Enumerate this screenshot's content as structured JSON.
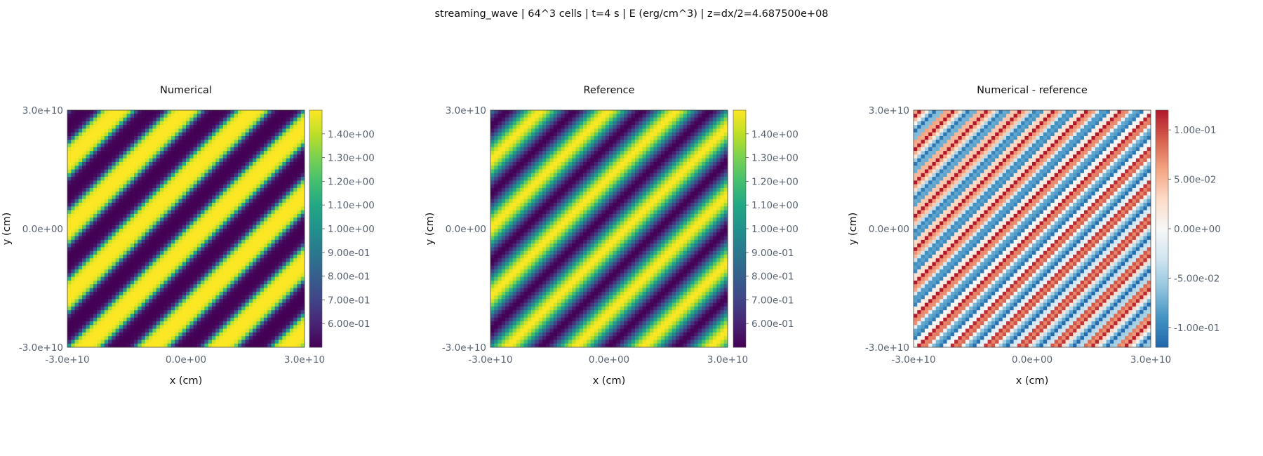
{
  "title": "streaming_wave | 64^3 cells | t=4 s | E (erg/cm^3) | z=dx/2=4.687500e+08",
  "chart_data": [
    {
      "type": "heatmap",
      "title": "Numerical",
      "xlabel": "x (cm)",
      "ylabel": "y (cm)",
      "xlim": [
        -30000000000.0,
        30000000000.0
      ],
      "ylim": [
        -30000000000.0,
        30000000000.0
      ],
      "x_ticks": [
        "-3.0e+10",
        "0.0e+00",
        "3.0e+10"
      ],
      "y_ticks": [
        "-3.0e+10",
        "0.0e+00",
        "3.0e+10"
      ],
      "grid": [
        64,
        64
      ],
      "field": "1 + 0.5*sin(k*(x - y)), 3.5 wavelengths across, sharpened stripes (diagonal from lower-left to upper-right)",
      "colormap": "viridis",
      "colorbar": {
        "range": [
          0.5,
          1.5
        ],
        "ticks": [
          {
            "value": 1.4,
            "label": "1.40e+00"
          },
          {
            "value": 1.3,
            "label": "1.30e+00"
          },
          {
            "value": 1.2,
            "label": "1.20e+00"
          },
          {
            "value": 1.1,
            "label": "1.10e+00"
          },
          {
            "value": 1.0,
            "label": "1.00e+00"
          },
          {
            "value": 0.9,
            "label": "9.00e-01"
          },
          {
            "value": 0.8,
            "label": "8.00e-01"
          },
          {
            "value": 0.7,
            "label": "7.00e-01"
          },
          {
            "value": 0.6,
            "label": "6.00e-01"
          }
        ]
      }
    },
    {
      "type": "heatmap",
      "title": "Reference",
      "xlabel": "x (cm)",
      "ylabel": "y (cm)",
      "xlim": [
        -30000000000.0,
        30000000000.0
      ],
      "ylim": [
        -30000000000.0,
        30000000000.0
      ],
      "x_ticks": [
        "-3.0e+10",
        "0.0e+00",
        "3.0e+10"
      ],
      "y_ticks": [
        "-3.0e+10",
        "0.0e+00",
        "3.0e+10"
      ],
      "grid": [
        64,
        64
      ],
      "field": "1 + 0.5*sin(k*(x - y)), 3.5 wavelengths across (smooth)",
      "colormap": "viridis",
      "colorbar": {
        "range": [
          0.5,
          1.5
        ],
        "ticks": [
          {
            "value": 1.4,
            "label": "1.40e+00"
          },
          {
            "value": 1.3,
            "label": "1.30e+00"
          },
          {
            "value": 1.2,
            "label": "1.20e+00"
          },
          {
            "value": 1.1,
            "label": "1.10e+00"
          },
          {
            "value": 1.0,
            "label": "1.00e+00"
          },
          {
            "value": 0.9,
            "label": "9.00e-01"
          },
          {
            "value": 0.8,
            "label": "8.00e-01"
          },
          {
            "value": 0.7,
            "label": "7.00e-01"
          },
          {
            "value": 0.6,
            "label": "6.00e-01"
          }
        ]
      }
    },
    {
      "type": "heatmap",
      "title": "Numerical - reference",
      "xlabel": "x (cm)",
      "ylabel": "y (cm)",
      "xlim": [
        -30000000000.0,
        30000000000.0
      ],
      "ylim": [
        -30000000000.0,
        30000000000.0
      ],
      "x_ticks": [
        "-3.0e+10",
        "0.0e+00",
        "3.0e+10"
      ],
      "y_ticks": [
        "-3.0e+10",
        "0.0e+00",
        "3.0e+10"
      ],
      "grid": [
        64,
        64
      ],
      "field": "numerical minus reference; alternating signed diagonal bands, |diff| up to ~0.12",
      "colormap": "RdBu_r (diverging, blue negative, red positive)",
      "colorbar": {
        "range": [
          -0.12,
          0.12
        ],
        "ticks": [
          {
            "value": 0.1,
            "label": "1.00e-01"
          },
          {
            "value": 0.05,
            "label": "5.00e-02"
          },
          {
            "value": 0.0,
            "label": "0.00e+00"
          },
          {
            "value": -0.05,
            "label": "-5.00e-02"
          },
          {
            "value": -0.1,
            "label": "-1.00e-01"
          }
        ]
      }
    }
  ]
}
